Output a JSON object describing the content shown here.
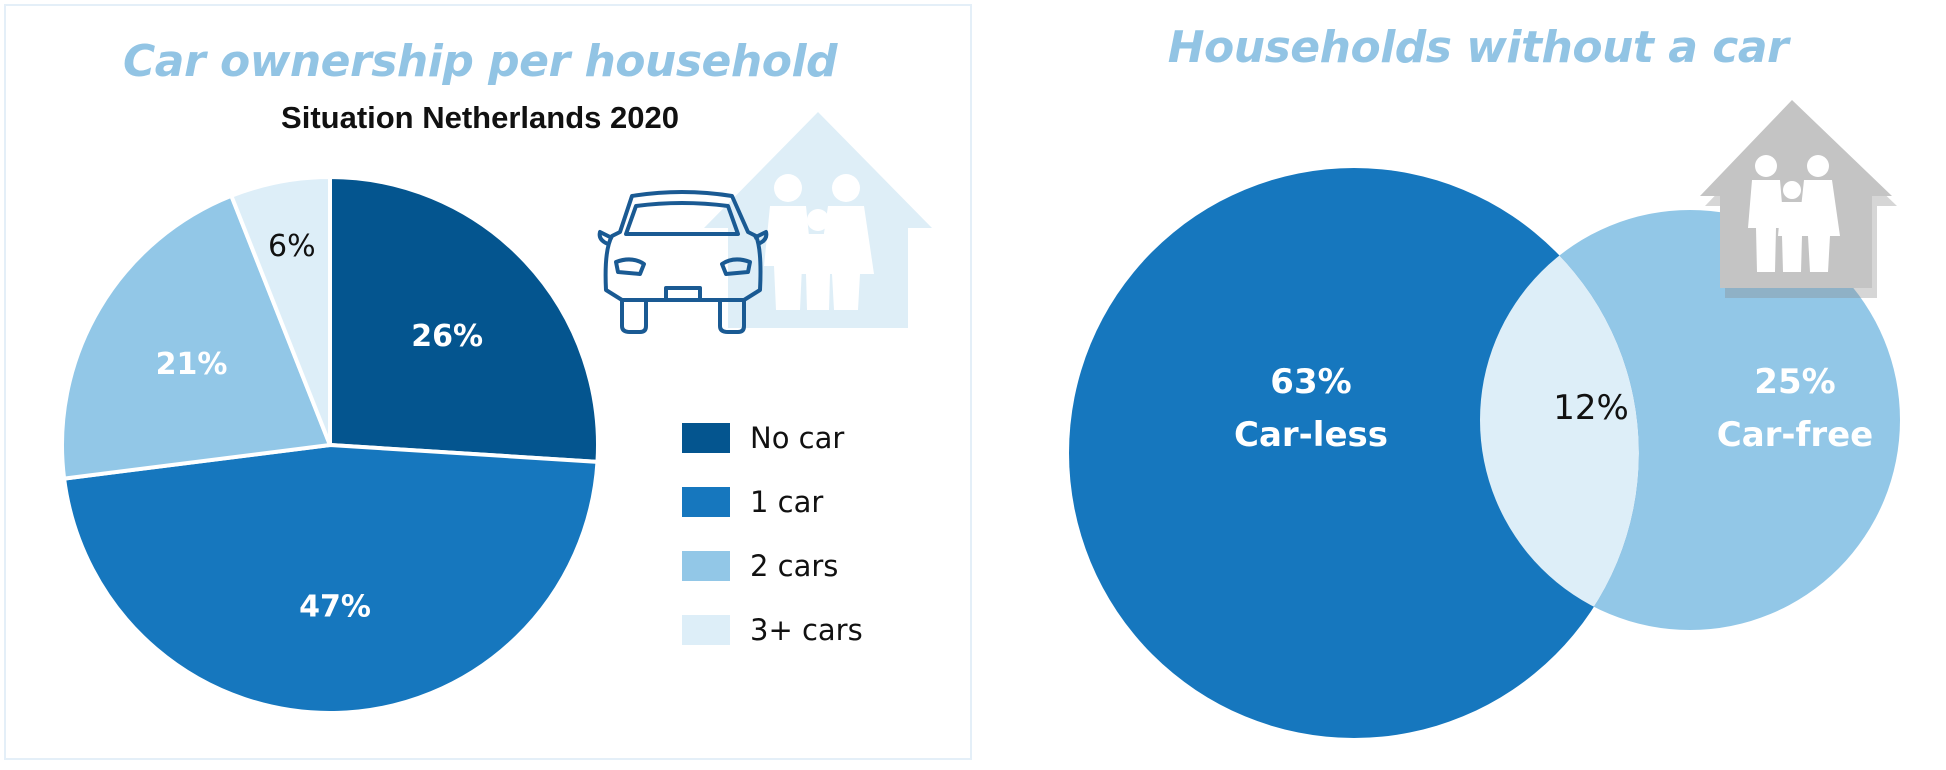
{
  "colors": {
    "no_car": "#04558f",
    "one_car": "#1677be",
    "two_cars": "#92c7e7",
    "three_plus": "#ddeef8",
    "title": "#92c4e4",
    "icon_house_light": "#deeef7",
    "icon_house_gray": "#c4c4c4",
    "icon_car_outline": "#1a5a93"
  },
  "icons": {
    "left": [
      "car-icon",
      "house-family-icon"
    ],
    "right": [
      "house-family-icon"
    ]
  },
  "chart_data": [
    {
      "type": "pie",
      "title": "Car ownership per household",
      "subtitle": "Situation Netherlands 2020",
      "legend_position": "right",
      "slices": [
        {
          "label": "No car",
          "value": 26,
          "display": "26%"
        },
        {
          "label": "1 car",
          "value": 47,
          "display": "47%"
        },
        {
          "label": "2 cars",
          "value": 21,
          "display": "21%"
        },
        {
          "label": "3+ cars",
          "value": 6,
          "display": "6%"
        }
      ]
    },
    {
      "type": "venn",
      "title": "Households without a car",
      "sets": [
        {
          "percent": "63%",
          "label": "Car-less",
          "value": 63
        },
        {
          "percent": "25%",
          "label": "Car-free",
          "value": 25
        }
      ],
      "overlap": {
        "percent": "12%",
        "value": 12
      }
    }
  ]
}
